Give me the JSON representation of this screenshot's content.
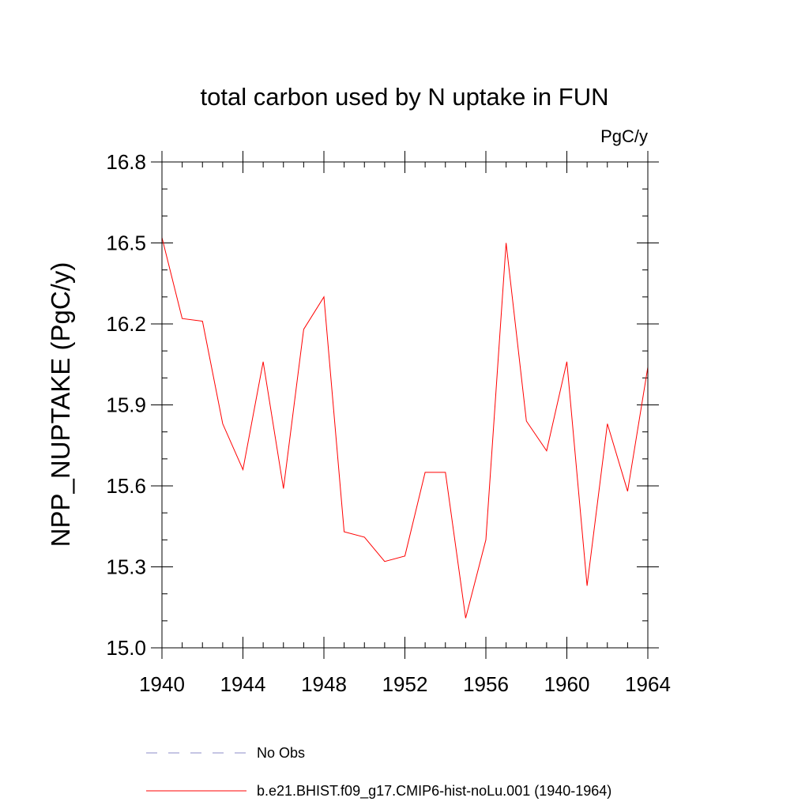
{
  "chart_data": {
    "type": "line",
    "title": "total carbon used by N uptake in FUN",
    "units": "PgC/y",
    "ylabel": "NPP_NUPTAKE  (PgC/y)",
    "xlabel": "",
    "xlim": [
      1940,
      1964
    ],
    "ylim": [
      15.0,
      16.8
    ],
    "x_ticks": [
      1940,
      1944,
      1948,
      1952,
      1956,
      1960,
      1964
    ],
    "x_tick_labels": [
      "1940",
      "1944",
      "1948",
      "1952",
      "1956",
      "1960",
      "1964"
    ],
    "y_ticks": [
      15.0,
      15.3,
      15.6,
      15.9,
      16.2,
      16.5,
      16.8
    ],
    "y_tick_labels": [
      "15.0",
      "15.3",
      "15.6",
      "15.9",
      "16.2",
      "16.5",
      "16.8"
    ],
    "grid": false,
    "legend_position": "bottom",
    "series": [
      {
        "name": "b.e21.BHIST.f09_g17.CMIP6-hist-noLu.001 (1940-1964)",
        "color": "#ff0000",
        "style": "solid",
        "x": [
          1940,
          1941,
          1942,
          1943,
          1944,
          1945,
          1946,
          1947,
          1948,
          1949,
          1950,
          1951,
          1952,
          1953,
          1954,
          1955,
          1956,
          1957,
          1958,
          1959,
          1960,
          1961,
          1962,
          1963,
          1964
        ],
        "y": [
          16.52,
          16.22,
          16.21,
          15.83,
          15.66,
          16.06,
          15.59,
          16.18,
          16.3,
          15.43,
          15.41,
          15.32,
          15.34,
          15.65,
          15.65,
          15.11,
          15.4,
          16.5,
          15.84,
          15.73,
          16.06,
          15.23,
          15.83,
          15.58,
          16.04
        ]
      },
      {
        "name": "No Obs",
        "color": "#8c8cc8",
        "style": "dashed",
        "x": [],
        "y": []
      }
    ]
  }
}
